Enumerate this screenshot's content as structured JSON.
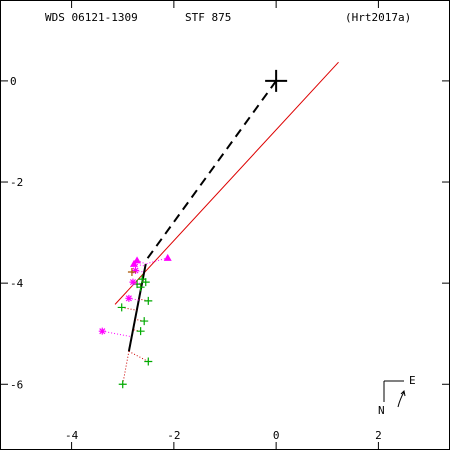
{
  "chart_data": {
    "type": "scatter",
    "header": {
      "left": "WDS 06121-1309",
      "center": "STF 875",
      "right": "(Hrt2017a)"
    },
    "x_ticks": [
      {
        "value": -4,
        "label": "-4"
      },
      {
        "value": -2,
        "label": "-2"
      },
      {
        "value": 0,
        "label": "0"
      },
      {
        "value": 2,
        "label": "2"
      }
    ],
    "y_ticks": [
      {
        "value": 0,
        "label": "0"
      },
      {
        "value": -2,
        "label": "-2"
      },
      {
        "value": -4,
        "label": "-4"
      },
      {
        "value": -6,
        "label": "-6"
      }
    ],
    "xlim": [
      -5.4,
      3.4
    ],
    "ylim": [
      -7.3,
      1.6
    ],
    "compass": {
      "east": "E",
      "north": "N"
    },
    "colors": {
      "axes": "#000000",
      "orbit_line": "#dd0000",
      "green_obs": "#00aa00",
      "magenta_obs": "#ff00ff",
      "residual_green": "#cc0000",
      "residual_magenta": "#ff00ff"
    },
    "primary": {
      "x": 0,
      "y": 0
    },
    "fit_line": {
      "x1": -3.15,
      "y1": -4.42,
      "x2": 1.22,
      "y2": 0.37
    },
    "dashed_line": {
      "x1": 0,
      "y1": 0,
      "x2": -2.58,
      "y2": -3.6
    },
    "solid_segment": {
      "x1": -2.55,
      "y1": -3.62,
      "x2": -2.88,
      "y2": -5.35
    },
    "green_points": [
      {
        "x": -2.62,
        "y": -3.92
      },
      {
        "x": -2.55,
        "y": -3.98
      },
      {
        "x": -2.65,
        "y": -4.08
      },
      {
        "x": -2.72,
        "y": -4.02
      },
      {
        "x": -2.5,
        "y": -4.35
      },
      {
        "x": -3.02,
        "y": -4.48
      },
      {
        "x": -2.58,
        "y": -4.75
      },
      {
        "x": -2.65,
        "y": -4.95
      },
      {
        "x": -2.5,
        "y": -5.55
      },
      {
        "x": -3.0,
        "y": -6.0
      }
    ],
    "magenta_points": [
      {
        "x": -2.72,
        "y": -3.55,
        "marker": "triangle"
      },
      {
        "x": -2.78,
        "y": -3.62,
        "marker": "triangle"
      },
      {
        "x": -2.12,
        "y": -3.5,
        "marker": "triangle"
      },
      {
        "x": -2.75,
        "y": -3.75,
        "marker": "star"
      },
      {
        "x": -2.8,
        "y": -3.98,
        "marker": "star"
      },
      {
        "x": -2.88,
        "y": -4.3,
        "marker": "star"
      },
      {
        "x": -3.4,
        "y": -4.95,
        "marker": "star"
      }
    ],
    "brown_points": [
      {
        "x": -2.82,
        "y": -3.78
      }
    ]
  }
}
